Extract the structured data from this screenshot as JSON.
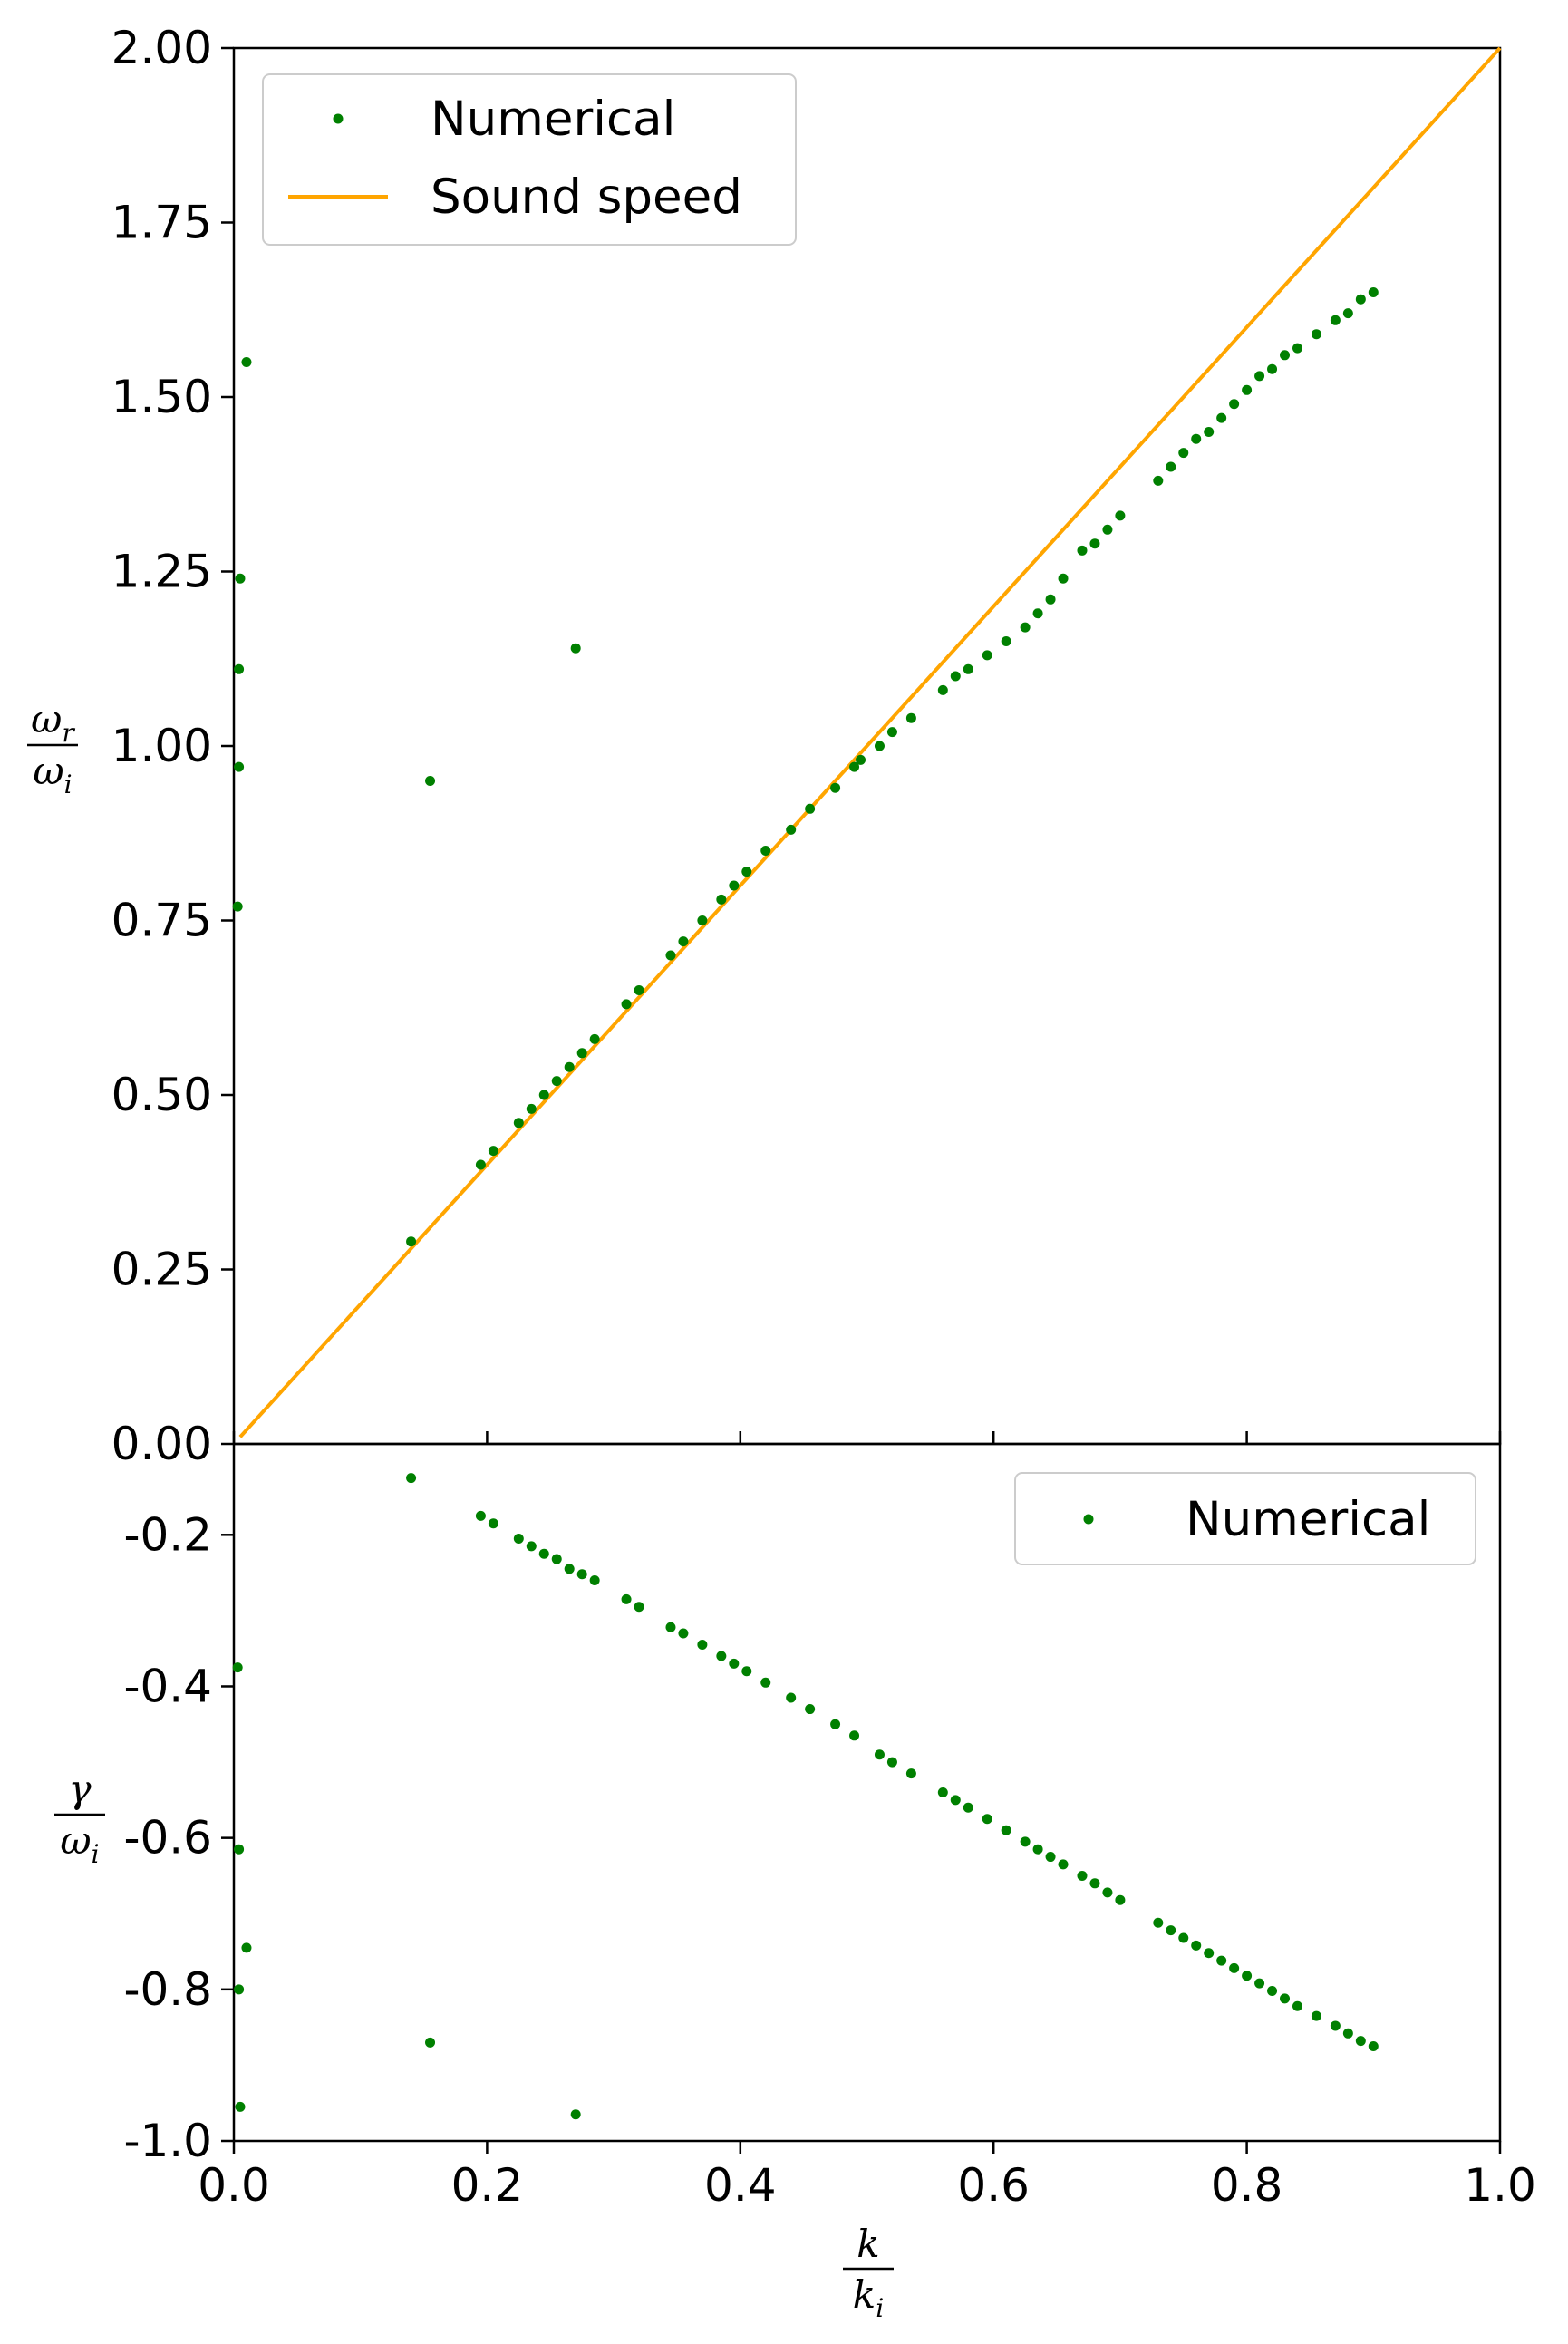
{
  "chart_data": [
    {
      "type": "scatter",
      "panel": "top",
      "ylabel": {
        "numerator": "ω",
        "numerator_sub": "r",
        "denominator": "ω",
        "denominator_sub": "i"
      },
      "xlim": [
        0.0,
        1.0
      ],
      "ylim": [
        0.0,
        2.0
      ],
      "yticks": [
        "0.00",
        "0.25",
        "0.50",
        "0.75",
        "1.00",
        "1.25",
        "1.50",
        "1.75",
        "2.00"
      ],
      "x_tick_values": [
        0.0,
        0.2,
        0.4,
        0.6,
        0.8,
        1.0
      ],
      "grid": false,
      "legend": {
        "placement": "top-left",
        "entries": [
          "Numerical",
          "Sound speed"
        ]
      },
      "colors": {
        "numerical": "#008000",
        "sound_speed": "#FFA500"
      },
      "series": [
        {
          "name": "Numerical",
          "marker": "dot",
          "points": [
            [
              0.003,
              0.77
            ],
            [
              0.004,
              0.97
            ],
            [
              0.004,
              1.11
            ],
            [
              0.005,
              1.24
            ],
            [
              0.01,
              1.55
            ],
            [
              0.14,
              0.29
            ],
            [
              0.155,
              0.95
            ],
            [
              0.195,
              0.4
            ],
            [
              0.205,
              0.42
            ],
            [
              0.225,
              0.46
            ],
            [
              0.235,
              0.48
            ],
            [
              0.245,
              0.5
            ],
            [
              0.255,
              0.52
            ],
            [
              0.265,
              0.54
            ],
            [
              0.275,
              0.56
            ],
            [
              0.285,
              0.58
            ],
            [
              0.31,
              0.63
            ],
            [
              0.32,
              0.65
            ],
            [
              0.345,
              0.7
            ],
            [
              0.355,
              0.72
            ],
            [
              0.37,
              0.75
            ],
            [
              0.385,
              0.78
            ],
            [
              0.395,
              0.8
            ],
            [
              0.405,
              0.82
            ],
            [
              0.42,
              0.85
            ],
            [
              0.44,
              0.88
            ],
            [
              0.455,
              0.91
            ],
            [
              0.475,
              0.94
            ],
            [
              0.49,
              0.97
            ],
            [
              0.495,
              0.98
            ],
            [
              0.51,
              1.0
            ],
            [
              0.52,
              1.02
            ],
            [
              0.535,
              1.04
            ],
            [
              0.56,
              1.08
            ],
            [
              0.57,
              1.1
            ],
            [
              0.58,
              1.11
            ],
            [
              0.595,
              1.13
            ],
            [
              0.61,
              1.15
            ],
            [
              0.625,
              1.17
            ],
            [
              0.635,
              1.19
            ],
            [
              0.645,
              1.21
            ],
            [
              0.655,
              1.24
            ],
            [
              0.67,
              1.28
            ],
            [
              0.68,
              1.29
            ],
            [
              0.69,
              1.31
            ],
            [
              0.7,
              1.33
            ],
            [
              0.73,
              1.38
            ],
            [
              0.74,
              1.4
            ],
            [
              0.75,
              1.42
            ],
            [
              0.76,
              1.44
            ],
            [
              0.77,
              1.45
            ],
            [
              0.78,
              1.47
            ],
            [
              0.79,
              1.49
            ],
            [
              0.8,
              1.51
            ],
            [
              0.81,
              1.53
            ],
            [
              0.82,
              1.54
            ],
            [
              0.83,
              1.56
            ],
            [
              0.84,
              1.57
            ],
            [
              0.855,
              1.59
            ],
            [
              0.87,
              1.61
            ],
            [
              0.88,
              1.62
            ],
            [
              0.89,
              1.64
            ],
            [
              0.9,
              1.65
            ],
            [
              0.27,
              1.14
            ]
          ]
        },
        {
          "name": "Sound speed",
          "type": "line",
          "x": [
            0.005,
            1.0
          ],
          "y": [
            0.01,
            2.0
          ]
        }
      ]
    },
    {
      "type": "scatter",
      "panel": "bottom",
      "xlabel": {
        "numerator": "k",
        "denominator": "k",
        "denominator_sub": "i"
      },
      "ylabel": {
        "numerator": "γ",
        "denominator": "ω",
        "denominator_sub": "i"
      },
      "xlim": [
        0.0,
        1.0
      ],
      "ylim": [
        -1.0,
        -0.08
      ],
      "xticks": [
        "0.0",
        "0.2",
        "0.4",
        "0.6",
        "0.8",
        "1.0"
      ],
      "yticks": [
        "-1.0",
        "-0.8",
        "-0.6",
        "-0.4",
        "-0.2"
      ],
      "grid": false,
      "legend": {
        "placement": "top-right",
        "entries": [
          "Numerical"
        ]
      },
      "colors": {
        "numerical": "#008000"
      },
      "series": [
        {
          "name": "Numerical",
          "marker": "dot",
          "points": [
            [
              0.003,
              -0.375
            ],
            [
              0.004,
              -0.615
            ],
            [
              0.004,
              -0.8
            ],
            [
              0.005,
              -0.955
            ],
            [
              0.01,
              -0.745
            ],
            [
              0.14,
              -0.125
            ],
            [
              0.155,
              -0.87
            ],
            [
              0.27,
              -0.965
            ],
            [
              0.195,
              -0.175
            ],
            [
              0.205,
              -0.185
            ],
            [
              0.225,
              -0.205
            ],
            [
              0.235,
              -0.215
            ],
            [
              0.245,
              -0.225
            ],
            [
              0.255,
              -0.232
            ],
            [
              0.265,
              -0.245
            ],
            [
              0.275,
              -0.252
            ],
            [
              0.285,
              -0.26
            ],
            [
              0.31,
              -0.285
            ],
            [
              0.32,
              -0.295
            ],
            [
              0.345,
              -0.322
            ],
            [
              0.355,
              -0.33
            ],
            [
              0.37,
              -0.345
            ],
            [
              0.385,
              -0.36
            ],
            [
              0.395,
              -0.37
            ],
            [
              0.405,
              -0.38
            ],
            [
              0.42,
              -0.395
            ],
            [
              0.44,
              -0.415
            ],
            [
              0.455,
              -0.43
            ],
            [
              0.475,
              -0.45
            ],
            [
              0.49,
              -0.465
            ],
            [
              0.51,
              -0.49
            ],
            [
              0.52,
              -0.5
            ],
            [
              0.535,
              -0.515
            ],
            [
              0.56,
              -0.54
            ],
            [
              0.57,
              -0.55
            ],
            [
              0.58,
              -0.56
            ],
            [
              0.595,
              -0.575
            ],
            [
              0.61,
              -0.59
            ],
            [
              0.625,
              -0.605
            ],
            [
              0.635,
              -0.615
            ],
            [
              0.645,
              -0.625
            ],
            [
              0.655,
              -0.635
            ],
            [
              0.67,
              -0.65
            ],
            [
              0.68,
              -0.66
            ],
            [
              0.69,
              -0.672
            ],
            [
              0.7,
              -0.682
            ],
            [
              0.73,
              -0.712
            ],
            [
              0.74,
              -0.722
            ],
            [
              0.75,
              -0.732
            ],
            [
              0.76,
              -0.742
            ],
            [
              0.77,
              -0.752
            ],
            [
              0.78,
              -0.762
            ],
            [
              0.79,
              -0.772
            ],
            [
              0.8,
              -0.782
            ],
            [
              0.81,
              -0.792
            ],
            [
              0.82,
              -0.802
            ],
            [
              0.83,
              -0.812
            ],
            [
              0.84,
              -0.822
            ],
            [
              0.855,
              -0.835
            ],
            [
              0.87,
              -0.848
            ],
            [
              0.88,
              -0.858
            ],
            [
              0.89,
              -0.868
            ],
            [
              0.9,
              -0.875
            ]
          ]
        }
      ]
    }
  ]
}
